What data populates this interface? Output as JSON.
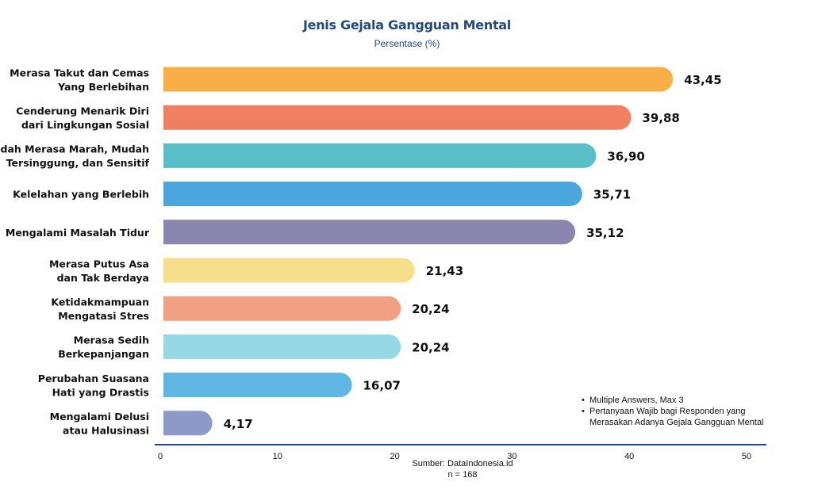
{
  "chart_data": {
    "type": "bar",
    "orientation": "horizontal",
    "title": "Jenis Gejala Gangguan Mental",
    "subtitle": "Persentase (%)",
    "categories": [
      [
        "Merasa Takut dan Cemas",
        "Yang Berlebihan"
      ],
      [
        "Cenderung Menarik Diri",
        "dari Lingkungan Sosial"
      ],
      [
        "Mudah Merasa Marah, Mudah",
        "Tersinggung, dan Sensitif"
      ],
      [
        "Kelelahan yang Berlebih"
      ],
      [
        "Mengalami Masalah Tidur"
      ],
      [
        "Merasa Putus Asa",
        "dan Tak Berdaya"
      ],
      [
        "Ketidakmampuan",
        "Mengatasi Stres"
      ],
      [
        "Merasa Sedih",
        "Berkepanjangan"
      ],
      [
        "Perubahan Suasana",
        "Hati yang Drastis"
      ],
      [
        "Mengalami Delusi",
        "atau Halusinasi"
      ]
    ],
    "values": [
      43.45,
      39.88,
      36.9,
      35.71,
      35.12,
      21.43,
      20.24,
      20.24,
      16.07,
      4.17
    ],
    "value_labels": [
      "43,45",
      "39,88",
      "36,90",
      "35,71",
      "35,12",
      "21,43",
      "20,24",
      "20,24",
      "16,07",
      "4,17"
    ],
    "colors": [
      "#f9ae48",
      "#f17f62",
      "#58bec8",
      "#4aa6dc",
      "#8a86ad",
      "#f6df8a",
      "#f1a083",
      "#96d8e6",
      "#5fb6e3",
      "#8d99c9"
    ],
    "xlim": [
      0,
      50
    ],
    "xticks": [
      "0",
      "10",
      "20",
      "30",
      "40",
      "50"
    ],
    "axis_color": "#234a7e",
    "grid": false,
    "notes": [
      "Multiple Answers, Max 3",
      "Pertanyaan Wajib bagi Responden yang",
      "Merasakan Adanya Gejala Gangguan Mental"
    ],
    "source": "Sumber: DataIndonesia.id",
    "sample": "n = 168"
  }
}
